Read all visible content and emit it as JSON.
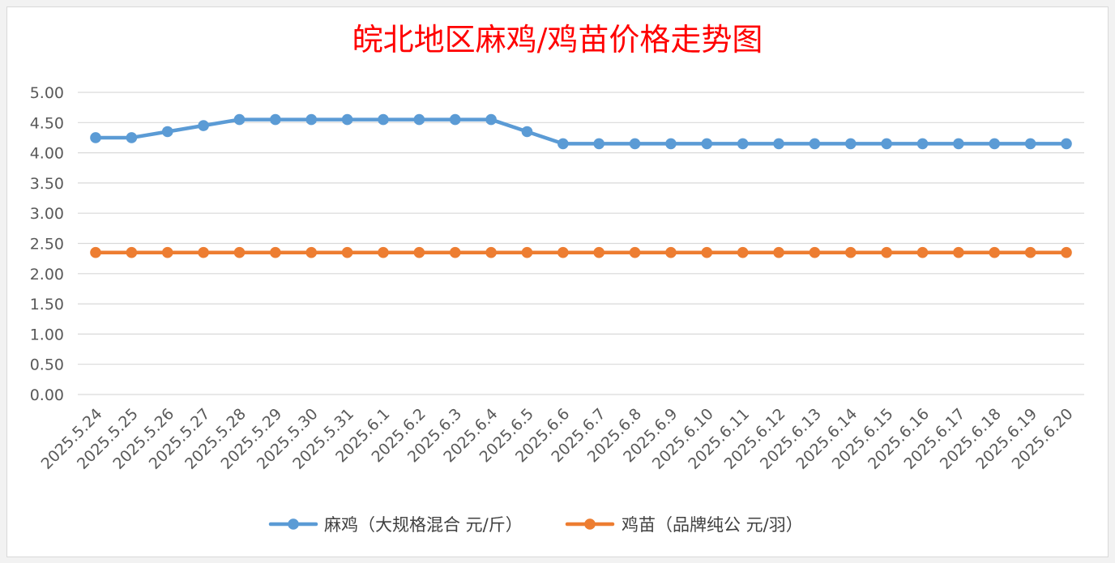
{
  "chart_data": {
    "type": "line",
    "title": "皖北地区麻鸡/鸡苗价格走势图",
    "xlabel": "",
    "ylabel": "",
    "ylim": [
      0,
      5
    ],
    "yticks": [
      "0.00",
      "0.50",
      "1.00",
      "1.50",
      "2.00",
      "2.50",
      "3.00",
      "3.50",
      "4.00",
      "4.50",
      "5.00"
    ],
    "grid": true,
    "legend_position": "bottom",
    "categories": [
      "2025.5.24",
      "2025.5.25",
      "2025.5.26",
      "2025.5.27",
      "2025.5.28",
      "2025.5.29",
      "2025.5.30",
      "2025.5.31",
      "2025.6.1",
      "2025.6.2",
      "2025.6.3",
      "2025.6.4",
      "2025.6.5",
      "2025.6.6",
      "2025.6.7",
      "2025.6.8",
      "2025.6.9",
      "2025.6.10",
      "2025.6.11",
      "2025.6.12",
      "2025.6.13",
      "2025.6.14",
      "2025.6.15",
      "2025.6.16",
      "2025.6.17",
      "2025.6.18",
      "2025.6.19",
      "2025.6.20"
    ],
    "series": [
      {
        "name": "麻鸡（大规格混合 元/斤）",
        "color": "#5b9bd5",
        "values": [
          4.25,
          4.25,
          4.35,
          4.45,
          4.55,
          4.55,
          4.55,
          4.55,
          4.55,
          4.55,
          4.55,
          4.55,
          4.35,
          4.15,
          4.15,
          4.15,
          4.15,
          4.15,
          4.15,
          4.15,
          4.15,
          4.15,
          4.15,
          4.15,
          4.15,
          4.15,
          4.15,
          4.15
        ]
      },
      {
        "name": "鸡苗（品牌纯公 元/羽）",
        "color": "#ed7d31",
        "values": [
          2.35,
          2.35,
          2.35,
          2.35,
          2.35,
          2.35,
          2.35,
          2.35,
          2.35,
          2.35,
          2.35,
          2.35,
          2.35,
          2.35,
          2.35,
          2.35,
          2.35,
          2.35,
          2.35,
          2.35,
          2.35,
          2.35,
          2.35,
          2.35,
          2.35,
          2.35,
          2.35,
          2.35
        ]
      }
    ]
  }
}
